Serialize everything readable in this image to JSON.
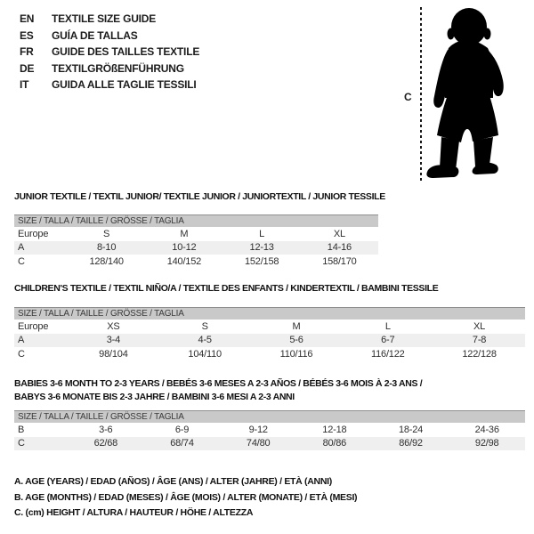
{
  "header": {
    "languages": [
      {
        "code": "EN",
        "title": "TEXTILE SIZE GUIDE"
      },
      {
        "code": "ES",
        "title": "GUÍA DE TALLAS"
      },
      {
        "code": "FR",
        "title": "GUIDE DES TAILLES TEXTILE"
      },
      {
        "code": "DE",
        "title": "TEXTILGRÖßENFÜHRUNG"
      },
      {
        "code": "IT",
        "title": "GUIDA ALLE TAGLIE TESSILI"
      }
    ]
  },
  "figure": {
    "measure_label": "C",
    "silhouette": "baby-toddler-silhouette"
  },
  "tables": [
    {
      "title_lines": [
        "JUNIOR TEXTILE / TEXTIL JUNIOR/ TEXTILE JUNIOR / JUNIORTEXTIL / JUNIOR TESSILE"
      ],
      "size_header": "SIZE / TALLA / TAILLE / GRÖSSE / TAGLIA",
      "rows": [
        {
          "label": "Europe",
          "values": [
            "S",
            "M",
            "L",
            "XL"
          ]
        },
        {
          "label": "A",
          "values": [
            "8-10",
            "10-12",
            "12-13",
            "14-16"
          ]
        },
        {
          "label": "C",
          "values": [
            "128/140",
            "140/152",
            "152/158",
            "158/170"
          ]
        }
      ]
    },
    {
      "title_lines": [
        "CHILDREN'S TEXTILE / TEXTIL NIÑO/A / TEXTILE DES ENFANTS / KINDERTEXTIL / BAMBINI TESSILE"
      ],
      "size_header": "SIZE / TALLA / TAILLE / GRÖSSE / TAGLIA",
      "rows": [
        {
          "label": "Europe",
          "values": [
            "XS",
            "S",
            "M",
            "L",
            "XL"
          ]
        },
        {
          "label": "A",
          "values": [
            "3-4",
            "4-5",
            "5-6",
            "6-7",
            "7-8"
          ]
        },
        {
          "label": "C",
          "values": [
            "98/104",
            "104/110",
            "110/116",
            "116/122",
            "122/128"
          ]
        }
      ]
    },
    {
      "title_lines": [
        "BABIES 3-6 MONTH TO 2-3 YEARS / BEBÉS 3-6 MESES A 2-3 AÑOS / BÉBÉS 3-6 MOIS À 2-3 ANS /",
        "BABYS 3-6 MONATE BIS 2-3 JAHRE / BAMBINI 3-6 MESI A 2-3 ANNI"
      ],
      "size_header": "SIZE / TALLA / TAILLE / GRÖSSE / TAGLIA",
      "rows": [
        {
          "label": "B",
          "values": [
            "3-6",
            "6-9",
            "9-12",
            "12-18",
            "18-24",
            "24-36"
          ]
        },
        {
          "label": "C",
          "values": [
            "62/68",
            "68/74",
            "74/80",
            "80/86",
            "86/92",
            "92/98"
          ]
        }
      ]
    }
  ],
  "notes": [
    "A. AGE (YEARS) / EDAD (AÑOS) / ÂGE (ANS) / ALTER (JAHRE) / ETÀ (ANNI)",
    "B. AGE (MONTHS) / EDAD (MESES) / ÂGE (MOIS) / ALTER (MONATE) / ETÀ (MESI)",
    "C. (cm) HEIGHT / ALTURA / HAUTEUR / HÖHE / ALTEZZA"
  ],
  "colors": {
    "text": "#1c1c1c",
    "band_bg": "#c9c9c9",
    "band_border": "#8f8f8f",
    "band_text": "#3a3a3a",
    "stripe_bg": "#efefef",
    "silhouette": "#000000"
  }
}
